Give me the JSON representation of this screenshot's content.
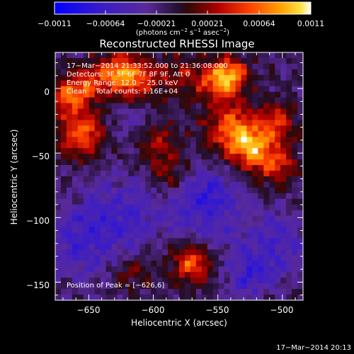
{
  "colorbar": {
    "tick_labels": [
      "−0.0011",
      "−0.00064",
      "−0.00021",
      "0.00021",
      "0.00064",
      "0.0011"
    ],
    "units_main": "(photons cm",
    "units_exp1": "−2",
    "units_mid1": " s",
    "units_exp2": "−1",
    "units_mid2": " asec",
    "units_exp3": "−2",
    "units_close": ")"
  },
  "plot": {
    "title": "Reconstructed RHESSI Image",
    "xlabel": "Heliocentric X (arcsec)",
    "ylabel": "Heliocentric Y (arcsec)",
    "xticks": [
      -650,
      -600,
      -550,
      -500
    ],
    "yticks": [
      0,
      -50,
      -100,
      -150
    ],
    "xtick_labels": [
      "−650",
      "−600",
      "−550",
      "−500"
    ],
    "ytick_labels": [
      "0",
      "−50",
      "−100",
      "−150"
    ],
    "xlim": [
      -676,
      -484
    ],
    "ylim": [
      -164,
      28
    ]
  },
  "annotations": {
    "line1": "17−Mar−2014 21:33:52.000 to 21:36:08.000",
    "line2": "Detectors: 3F 5F 6F 7F 8F 9F, Att 0",
    "line3": "Energy Range: 12.0 − 25.0 keV",
    "line4": "Clean    Total counts: 1.16E+04",
    "peak": "Position of Peak = [−626,6]"
  },
  "footer": {
    "timestamp": "17−Mar−2014 20:13"
  },
  "chart_data": {
    "type": "heatmap",
    "title": "Reconstructed RHESSI Image",
    "xlabel": "Heliocentric X (arcsec)",
    "ylabel": "Heliocentric Y (arcsec)",
    "xlim": [
      -676,
      -484
    ],
    "ylim": [
      -164,
      28
    ],
    "color_range": [
      -0.0011,
      0.0011
    ],
    "colormap": "blue-purple-red-yellow-white",
    "grid": false,
    "blobs": [
      {
        "x": -665,
        "y": -5,
        "amp": 0.00075,
        "sigma": 10
      },
      {
        "x": -655,
        "y": -35,
        "amp": 0.0008,
        "sigma": 13
      },
      {
        "x": -650,
        "y": 5,
        "amp": 0.0005,
        "sigma": 10
      },
      {
        "x": -628,
        "y": 12,
        "amp": 0.0008,
        "sigma": 10
      },
      {
        "x": -610,
        "y": 5,
        "amp": 0.0006,
        "sigma": 14
      },
      {
        "x": -598,
        "y": -40,
        "amp": 0.0005,
        "sigma": 12
      },
      {
        "x": -590,
        "y": -65,
        "amp": 0.00035,
        "sigma": 10
      },
      {
        "x": -575,
        "y": 10,
        "amp": 0.0004,
        "sigma": 12
      },
      {
        "x": -552,
        "y": 5,
        "amp": 0.0005,
        "sigma": 10
      },
      {
        "x": -540,
        "y": 10,
        "amp": 0.00085,
        "sigma": 10
      },
      {
        "x": -540,
        "y": -30,
        "amp": 0.0007,
        "sigma": 14
      },
      {
        "x": -525,
        "y": -45,
        "amp": 0.0008,
        "sigma": 12
      },
      {
        "x": -505,
        "y": -58,
        "amp": 0.0006,
        "sigma": 12
      },
      {
        "x": -505,
        "y": -25,
        "amp": 0.0006,
        "sigma": 10
      },
      {
        "x": -570,
        "y": -135,
        "amp": 0.00085,
        "sigma": 11
      },
      {
        "x": -615,
        "y": -142,
        "amp": 0.00035,
        "sigma": 10
      },
      {
        "x": -660,
        "y": -120,
        "amp": -0.0004,
        "sigma": 18
      },
      {
        "x": -625,
        "y": -100,
        "amp": -0.0004,
        "sigma": 22
      },
      {
        "x": -560,
        "y": -100,
        "amp": -0.00035,
        "sigma": 20
      },
      {
        "x": -505,
        "y": -120,
        "amp": -0.0004,
        "sigma": 18
      },
      {
        "x": -525,
        "y": -145,
        "amp": -0.00045,
        "sigma": 12
      },
      {
        "x": -555,
        "y": -80,
        "amp": -0.00035,
        "sigma": 12
      },
      {
        "x": -610,
        "y": -25,
        "amp": -0.0003,
        "sigma": 14
      }
    ]
  }
}
